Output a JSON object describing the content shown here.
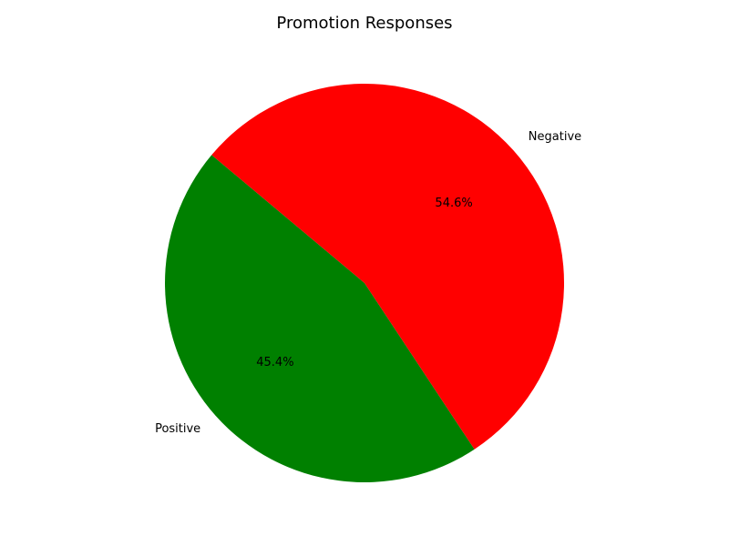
{
  "chart_data": {
    "type": "pie",
    "title": "Promotion Responses",
    "slices": [
      {
        "label": "Positive",
        "value": 45.4,
        "percent_label": "45.4%",
        "color": "#008000"
      },
      {
        "label": "Negative",
        "value": 54.6,
        "percent_label": "54.6%",
        "color": "#ff0000"
      }
    ],
    "legend": "none"
  }
}
